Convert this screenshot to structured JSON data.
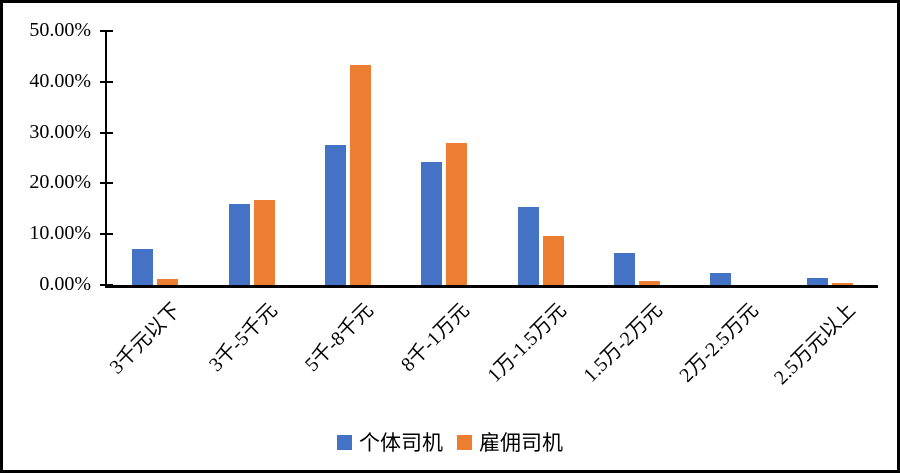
{
  "chart_data": {
    "type": "bar",
    "title": "",
    "categories": [
      "3千元以下",
      "3千-5千元",
      "5千-8千元",
      "8千-1万元",
      "1万-1.5万元",
      "1.5万-2万元",
      "2万-2.5万元",
      "2.5万元以上"
    ],
    "series": [
      {
        "name": "个体司机",
        "color": "#4472C4",
        "values": [
          7.0,
          15.9,
          27.5,
          24.2,
          15.3,
          6.3,
          2.4,
          1.4
        ]
      },
      {
        "name": "雇佣司机",
        "color": "#ED7D31",
        "values": [
          1.2,
          16.8,
          43.4,
          28.0,
          9.6,
          0.7,
          0.0,
          0.3
        ]
      }
    ],
    "xlabel": "",
    "ylabel": "",
    "ylim": [
      0,
      50
    ],
    "ytick_values": [
      0,
      10,
      20,
      30,
      40,
      50
    ],
    "ytick_labels": [
      "0.00%",
      "10.00%",
      "20.00%",
      "30.00%",
      "40.00%",
      "50.00%"
    ],
    "grid": false,
    "legend_position": "bottom",
    "value_format": "percent",
    "axis_color": "#000000",
    "frame_border_color": "#000000",
    "background_color": "#FFFFFF"
  }
}
